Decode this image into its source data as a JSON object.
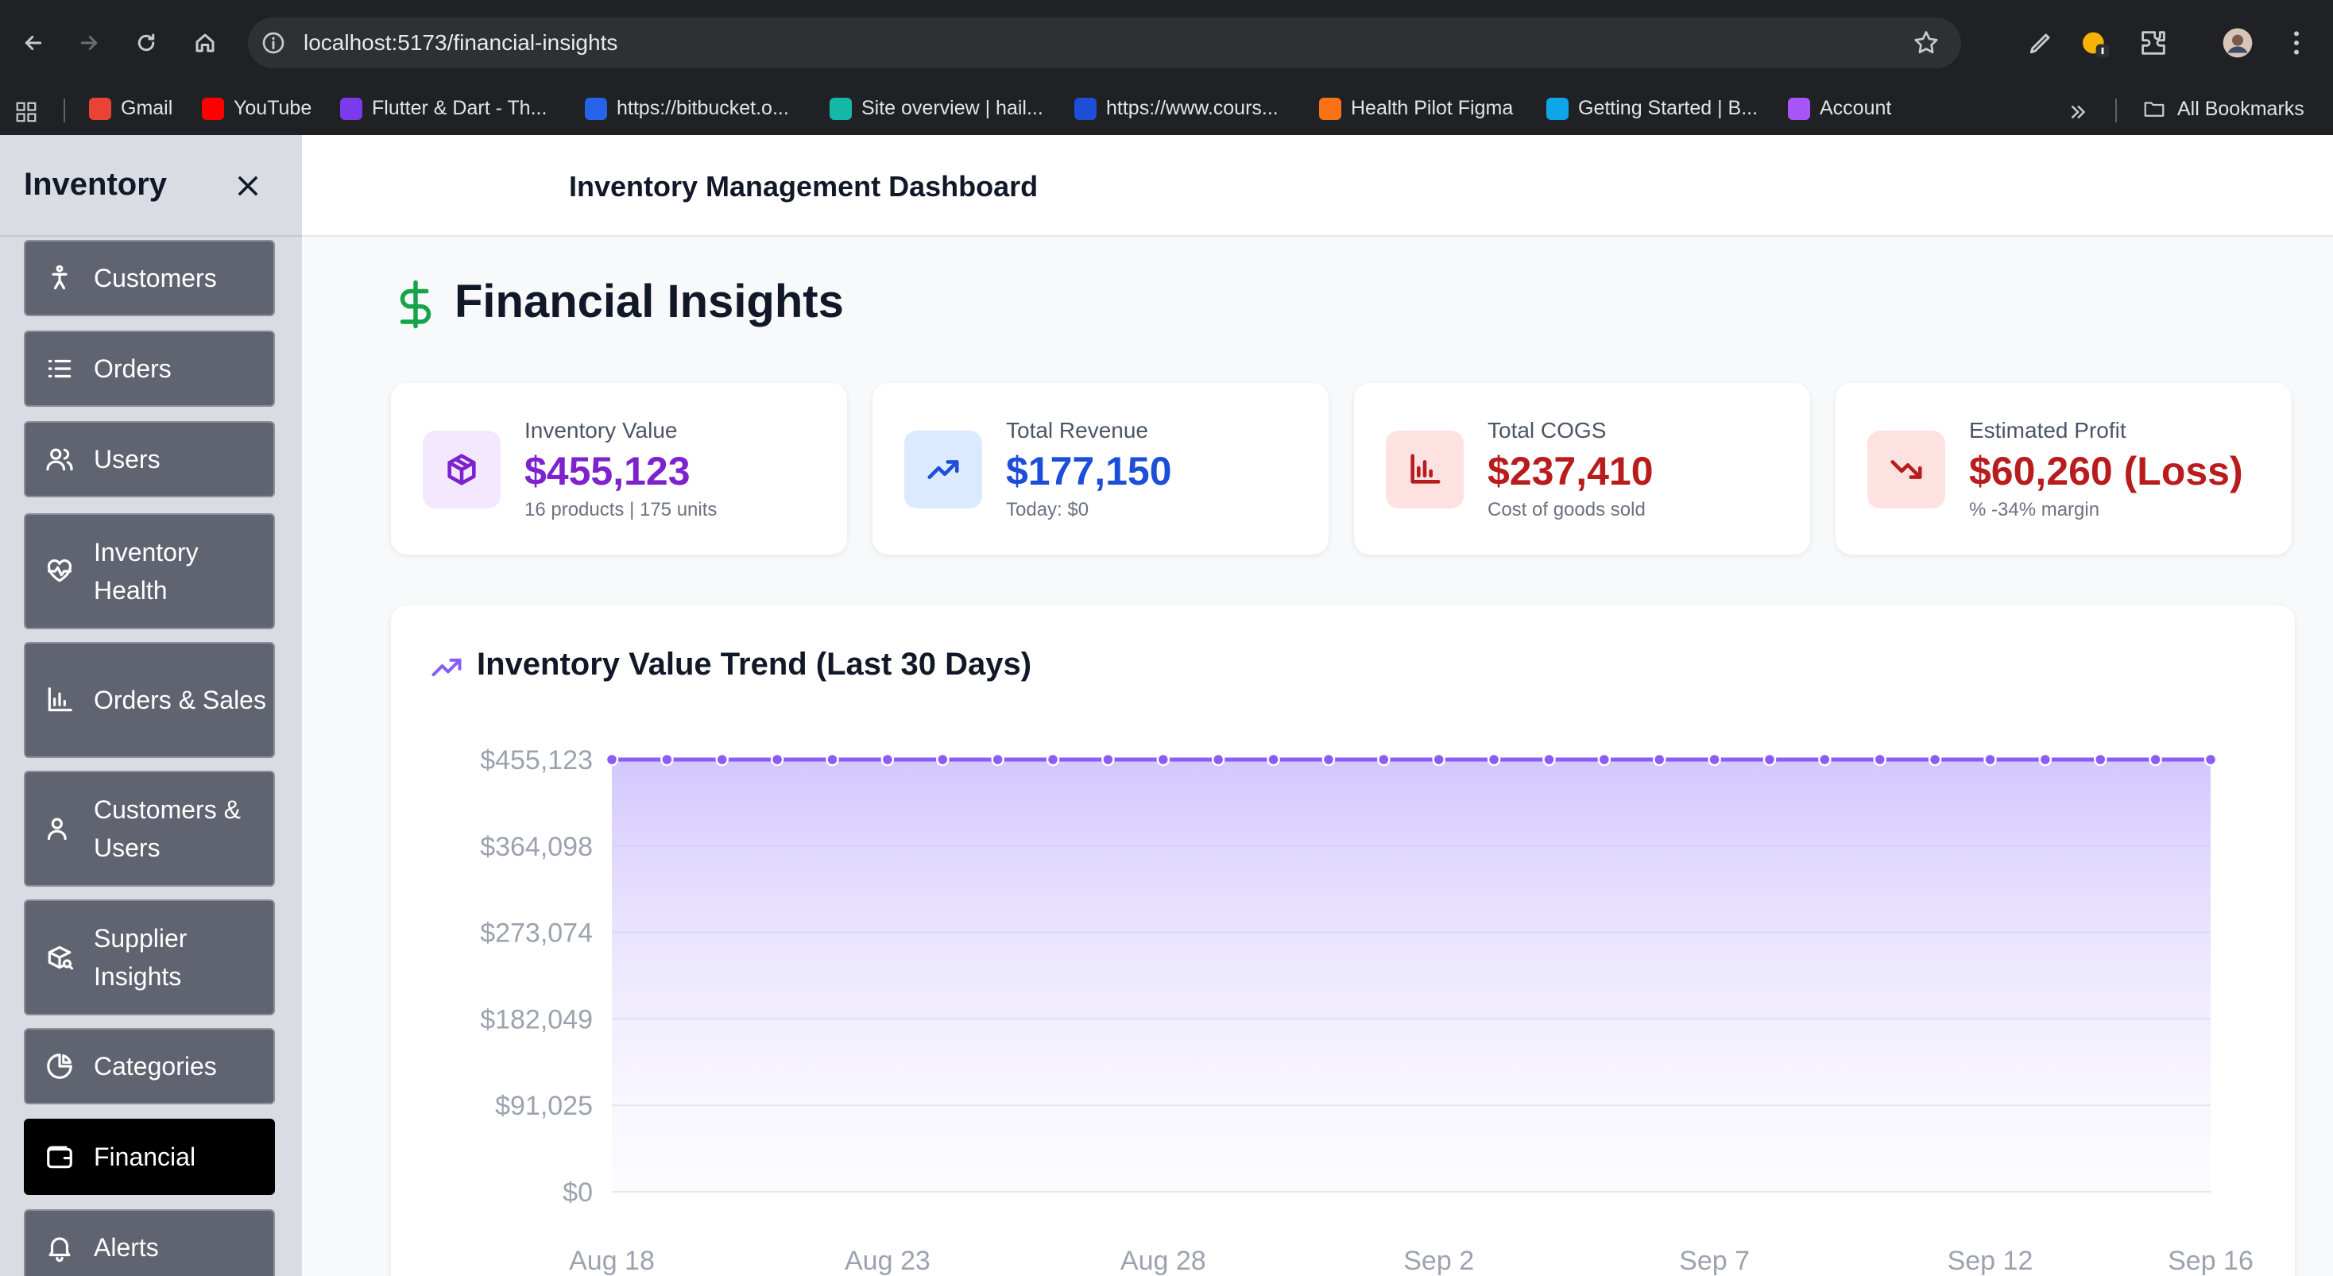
{
  "browser": {
    "url": "localhost:5173/financial-insights",
    "bookmarks": [
      {
        "label": "Gmail",
        "color": "#ea4335"
      },
      {
        "label": "YouTube",
        "color": "#ff0000"
      },
      {
        "label": "Flutter & Dart - Th...",
        "color": "#7c3aed"
      },
      {
        "label": "https://bitbucket.o...",
        "color": "#2563eb"
      },
      {
        "label": "Site overview | hail...",
        "color": "#14b8a6"
      },
      {
        "label": "https://www.cours...",
        "color": "#1d4ed8"
      },
      {
        "label": "Health Pilot Figma",
        "color": "#f97316"
      },
      {
        "label": "Getting Started | B...",
        "color": "#0ea5e9"
      },
      {
        "label": "Account",
        "color": "#a855f7"
      }
    ],
    "all_bookmarks": "All Bookmarks"
  },
  "sidebar": {
    "title": "Inventory",
    "items": [
      {
        "label": "Customers",
        "icon": "person-icon"
      },
      {
        "label": "Orders",
        "icon": "list-icon"
      },
      {
        "label": "Users",
        "icon": "users-icon"
      },
      {
        "label": "Inventory Health",
        "icon": "heart-pulse-icon"
      },
      {
        "label": "Orders & Sales",
        "icon": "bar-chart-icon"
      },
      {
        "label": "Customers & Users",
        "icon": "user-group-icon"
      },
      {
        "label": "Supplier Insights",
        "icon": "package-search-icon"
      },
      {
        "label": "Categories",
        "icon": "pie-chart-icon"
      },
      {
        "label": "Financial",
        "icon": "wallet-icon",
        "active": true
      },
      {
        "label": "Alerts",
        "icon": "bell-icon"
      }
    ]
  },
  "header": {
    "title": "Inventory Management Dashboard"
  },
  "page": {
    "title": "Financial Insights"
  },
  "cards": [
    {
      "label": "Inventory Value",
      "value": "$455,123",
      "sub": "16 products | 175 units",
      "color": "#7e22ce",
      "bg": "#f3e8ff",
      "icon": "box-icon"
    },
    {
      "label": "Total Revenue",
      "value": "$177,150",
      "sub": "Today: $0",
      "color": "#1d4ed8",
      "bg": "#dbeafe",
      "icon": "trending-up-icon"
    },
    {
      "label": "Total COGS",
      "value": "$237,410",
      "sub": "Cost of goods sold",
      "color": "#b91c1c",
      "bg": "#fee2e2",
      "icon": "bar-chart-icon"
    },
    {
      "label": "Estimated Profit",
      "value": "$60,260 (Loss)",
      "sub": "% -34% margin",
      "color": "#b91c1c",
      "bg": "#fee2e2",
      "icon": "trending-down-icon"
    }
  ],
  "chart_panel": {
    "title": "Inventory Value Trend (Last 30 Days)"
  },
  "chart_data": {
    "type": "area",
    "title": "Inventory Value Trend (Last 30 Days)",
    "xlabel": "",
    "ylabel": "",
    "x_tick_labels": [
      "Aug 18",
      "Aug 23",
      "Aug 28",
      "Sep 2",
      "Sep 7",
      "Sep 12",
      "Sep 16"
    ],
    "y_tick_labels": [
      "$0",
      "$91,025",
      "$182,049",
      "$273,074",
      "$364,098",
      "$455,123"
    ],
    "ylim": [
      0,
      455123
    ],
    "x": [
      "Aug 18",
      "Aug 19",
      "Aug 20",
      "Aug 21",
      "Aug 22",
      "Aug 23",
      "Aug 24",
      "Aug 25",
      "Aug 26",
      "Aug 27",
      "Aug 28",
      "Aug 29",
      "Aug 30",
      "Aug 31",
      "Sep 1",
      "Sep 2",
      "Sep 3",
      "Sep 4",
      "Sep 5",
      "Sep 6",
      "Sep 7",
      "Sep 8",
      "Sep 9",
      "Sep 10",
      "Sep 11",
      "Sep 12",
      "Sep 13",
      "Sep 14",
      "Sep 15",
      "Sep 16"
    ],
    "values": [
      455123,
      455123,
      455123,
      455123,
      455123,
      455123,
      455123,
      455123,
      455123,
      455123,
      455123,
      455123,
      455123,
      455123,
      455123,
      455123,
      455123,
      455123,
      455123,
      455123,
      455123,
      455123,
      455123,
      455123,
      455123,
      455123,
      455123,
      455123,
      455123,
      455123
    ],
    "line_color": "#8b5cf6",
    "grid": true
  }
}
